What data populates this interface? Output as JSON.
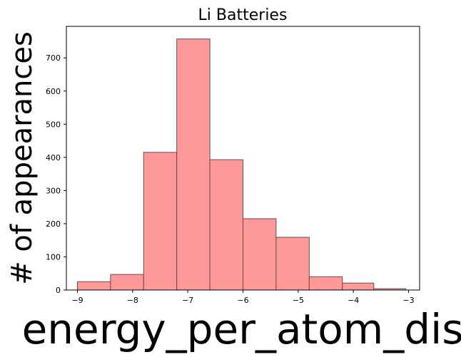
{
  "chart_data": {
    "type": "bar",
    "title": "Li Batteries",
    "xlabel": "energy_per_atom_dis",
    "ylabel": "# of appearances",
    "xlim": [
      -9.2,
      -2.8
    ],
    "ylim": [
      0,
      795
    ],
    "bin_edges": [
      -9.0,
      -8.4,
      -7.8,
      -7.2,
      -6.6,
      -6.0,
      -5.4,
      -4.8,
      -4.2,
      -3.63,
      -3.05
    ],
    "values": [
      25,
      47,
      415,
      757,
      393,
      215,
      159,
      40,
      21,
      4
    ],
    "xticks": [
      -9,
      -8,
      -7,
      -6,
      -5,
      -4,
      -3
    ],
    "yticks": [
      0,
      100,
      200,
      300,
      400,
      500,
      600,
      700
    ],
    "grid": false,
    "colors": {
      "bar_fill": "#ff9999",
      "bar_edge": "#6b4b4b"
    }
  }
}
